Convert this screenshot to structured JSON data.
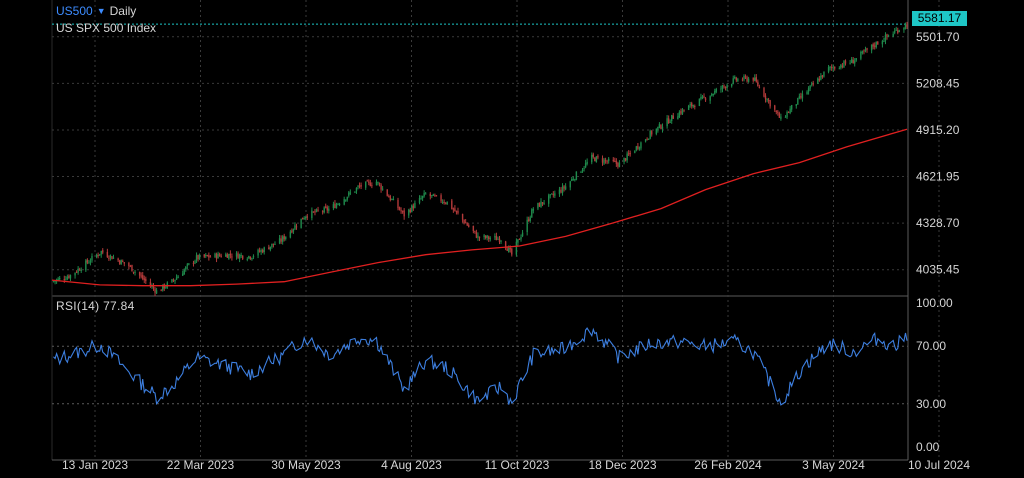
{
  "header": {
    "symbol": "US500",
    "timeframe": "Daily",
    "instrument_name": "US SPX 500 Index",
    "last_price": "5581.17"
  },
  "rsi_panel": {
    "label": "RSI(14) 77.84"
  },
  "icons": {
    "dropdown": "caret-down-icon"
  },
  "colors": {
    "background": "#000000",
    "grid": "#3a3a3a",
    "candle_up": "#1f8a4c",
    "candle_down": "#b33a3a",
    "moving_average": "#e02020",
    "rsi_line": "#3d7fe0",
    "price_tag": "#1ec6c6",
    "symbol": "#3d8cff"
  },
  "chart_data": [
    {
      "type": "candlestick",
      "title": "US SPX 500 Index",
      "x_tick_labels": [
        "13 Jan 2023",
        "22 Mar 2023",
        "30 May 2023",
        "4 Aug 2023",
        "11 Oct 2023",
        "18 Dec 2023",
        "26 Feb 2024",
        "3 May 2024",
        "10 Jul 2024"
      ],
      "y_tick_labels": [
        "5501.70",
        "5208.45",
        "4915.20",
        "4621.95",
        "4328.70",
        "4035.45"
      ],
      "ylim": [
        3870,
        5620
      ],
      "last_price": 5581.17,
      "series": [
        {
          "name": "",
          "kind": "close",
          "points": [
            [
              "2023-01-01",
              3960
            ],
            [
              "2023-01-13",
              4000
            ],
            [
              "2023-02-02",
              4150
            ],
            [
              "2023-02-20",
              4060
            ],
            [
              "2023-03-10",
              3900
            ],
            [
              "2023-03-20",
              3960
            ],
            [
              "2023-04-05",
              4110
            ],
            [
              "2023-04-25",
              4130
            ],
            [
              "2023-05-10",
              4120
            ],
            [
              "2023-05-30",
              4220
            ],
            [
              "2023-06-15",
              4380
            ],
            [
              "2023-07-01",
              4420
            ],
            [
              "2023-07-20",
              4560
            ],
            [
              "2023-07-31",
              4590
            ],
            [
              "2023-08-18",
              4380
            ],
            [
              "2023-09-01",
              4510
            ],
            [
              "2023-09-15",
              4460
            ],
            [
              "2023-10-05",
              4240
            ],
            [
              "2023-10-20",
              4230
            ],
            [
              "2023-10-27",
              4130
            ],
            [
              "2023-11-10",
              4420
            ],
            [
              "2023-11-30",
              4550
            ],
            [
              "2023-12-18",
              4740
            ],
            [
              "2024-01-05",
              4700
            ],
            [
              "2024-01-25",
              4890
            ],
            [
              "2024-02-12",
              5020
            ],
            [
              "2024-03-01",
              5120
            ],
            [
              "2024-03-20",
              5230
            ],
            [
              "2024-04-01",
              5240
            ],
            [
              "2024-04-19",
              4980
            ],
            [
              "2024-05-03",
              5130
            ],
            [
              "2024-05-20",
              5300
            ],
            [
              "2024-06-05",
              5350
            ],
            [
              "2024-06-20",
              5460
            ],
            [
              "2024-07-03",
              5540
            ],
            [
              "2024-07-10",
              5581.17
            ]
          ]
        },
        {
          "name": "",
          "kind": "moving-average",
          "points": [
            [
              "2023-01-01",
              3970
            ],
            [
              "2023-02-01",
              3940
            ],
            [
              "2023-03-01",
              3935
            ],
            [
              "2023-04-01",
              3935
            ],
            [
              "2023-05-01",
              3945
            ],
            [
              "2023-06-01",
              3960
            ],
            [
              "2023-07-01",
              4020
            ],
            [
              "2023-08-01",
              4080
            ],
            [
              "2023-09-01",
              4130
            ],
            [
              "2023-10-01",
              4160
            ],
            [
              "2023-11-01",
              4185
            ],
            [
              "2023-12-01",
              4245
            ],
            [
              "2024-01-01",
              4330
            ],
            [
              "2024-02-01",
              4420
            ],
            [
              "2024-03-01",
              4540
            ],
            [
              "2024-04-01",
              4640
            ],
            [
              "2024-05-01",
              4710
            ],
            [
              "2024-06-01",
              4810
            ],
            [
              "2024-07-10",
              4920
            ]
          ]
        }
      ]
    },
    {
      "type": "line",
      "title": "RSI(14) 77.84",
      "y_tick_labels": [
        "100.00",
        "70.00",
        "30.00",
        "0.00"
      ],
      "ylim": [
        0,
        100
      ],
      "reference_levels": [
        70,
        30
      ],
      "series": [
        {
          "name": "RSI(14)",
          "points": [
            [
              "2023-01-01",
              60
            ],
            [
              "2023-01-13",
              64
            ],
            [
              "2023-02-02",
              71
            ],
            [
              "2023-02-20",
              52
            ],
            [
              "2023-03-10",
              35
            ],
            [
              "2023-03-20",
              42
            ],
            [
              "2023-04-05",
              62
            ],
            [
              "2023-04-25",
              56
            ],
            [
              "2023-05-10",
              51
            ],
            [
              "2023-05-30",
              63
            ],
            [
              "2023-06-15",
              76
            ],
            [
              "2023-07-01",
              64
            ],
            [
              "2023-07-20",
              76
            ],
            [
              "2023-07-31",
              74
            ],
            [
              "2023-08-18",
              40
            ],
            [
              "2023-09-01",
              60
            ],
            [
              "2023-09-15",
              55
            ],
            [
              "2023-10-05",
              32
            ],
            [
              "2023-10-20",
              42
            ],
            [
              "2023-10-27",
              31
            ],
            [
              "2023-11-10",
              64
            ],
            [
              "2023-11-30",
              68
            ],
            [
              "2023-12-18",
              82
            ],
            [
              "2024-01-05",
              62
            ],
            [
              "2024-01-25",
              72
            ],
            [
              "2024-02-12",
              73
            ],
            [
              "2024-03-01",
              70
            ],
            [
              "2024-03-20",
              73
            ],
            [
              "2024-04-01",
              66
            ],
            [
              "2024-04-19",
              31
            ],
            [
              "2024-05-03",
              55
            ],
            [
              "2024-05-20",
              72
            ],
            [
              "2024-06-05",
              66
            ],
            [
              "2024-06-20",
              75
            ],
            [
              "2024-07-03",
              70
            ],
            [
              "2024-07-10",
              77.84
            ]
          ]
        }
      ]
    }
  ]
}
